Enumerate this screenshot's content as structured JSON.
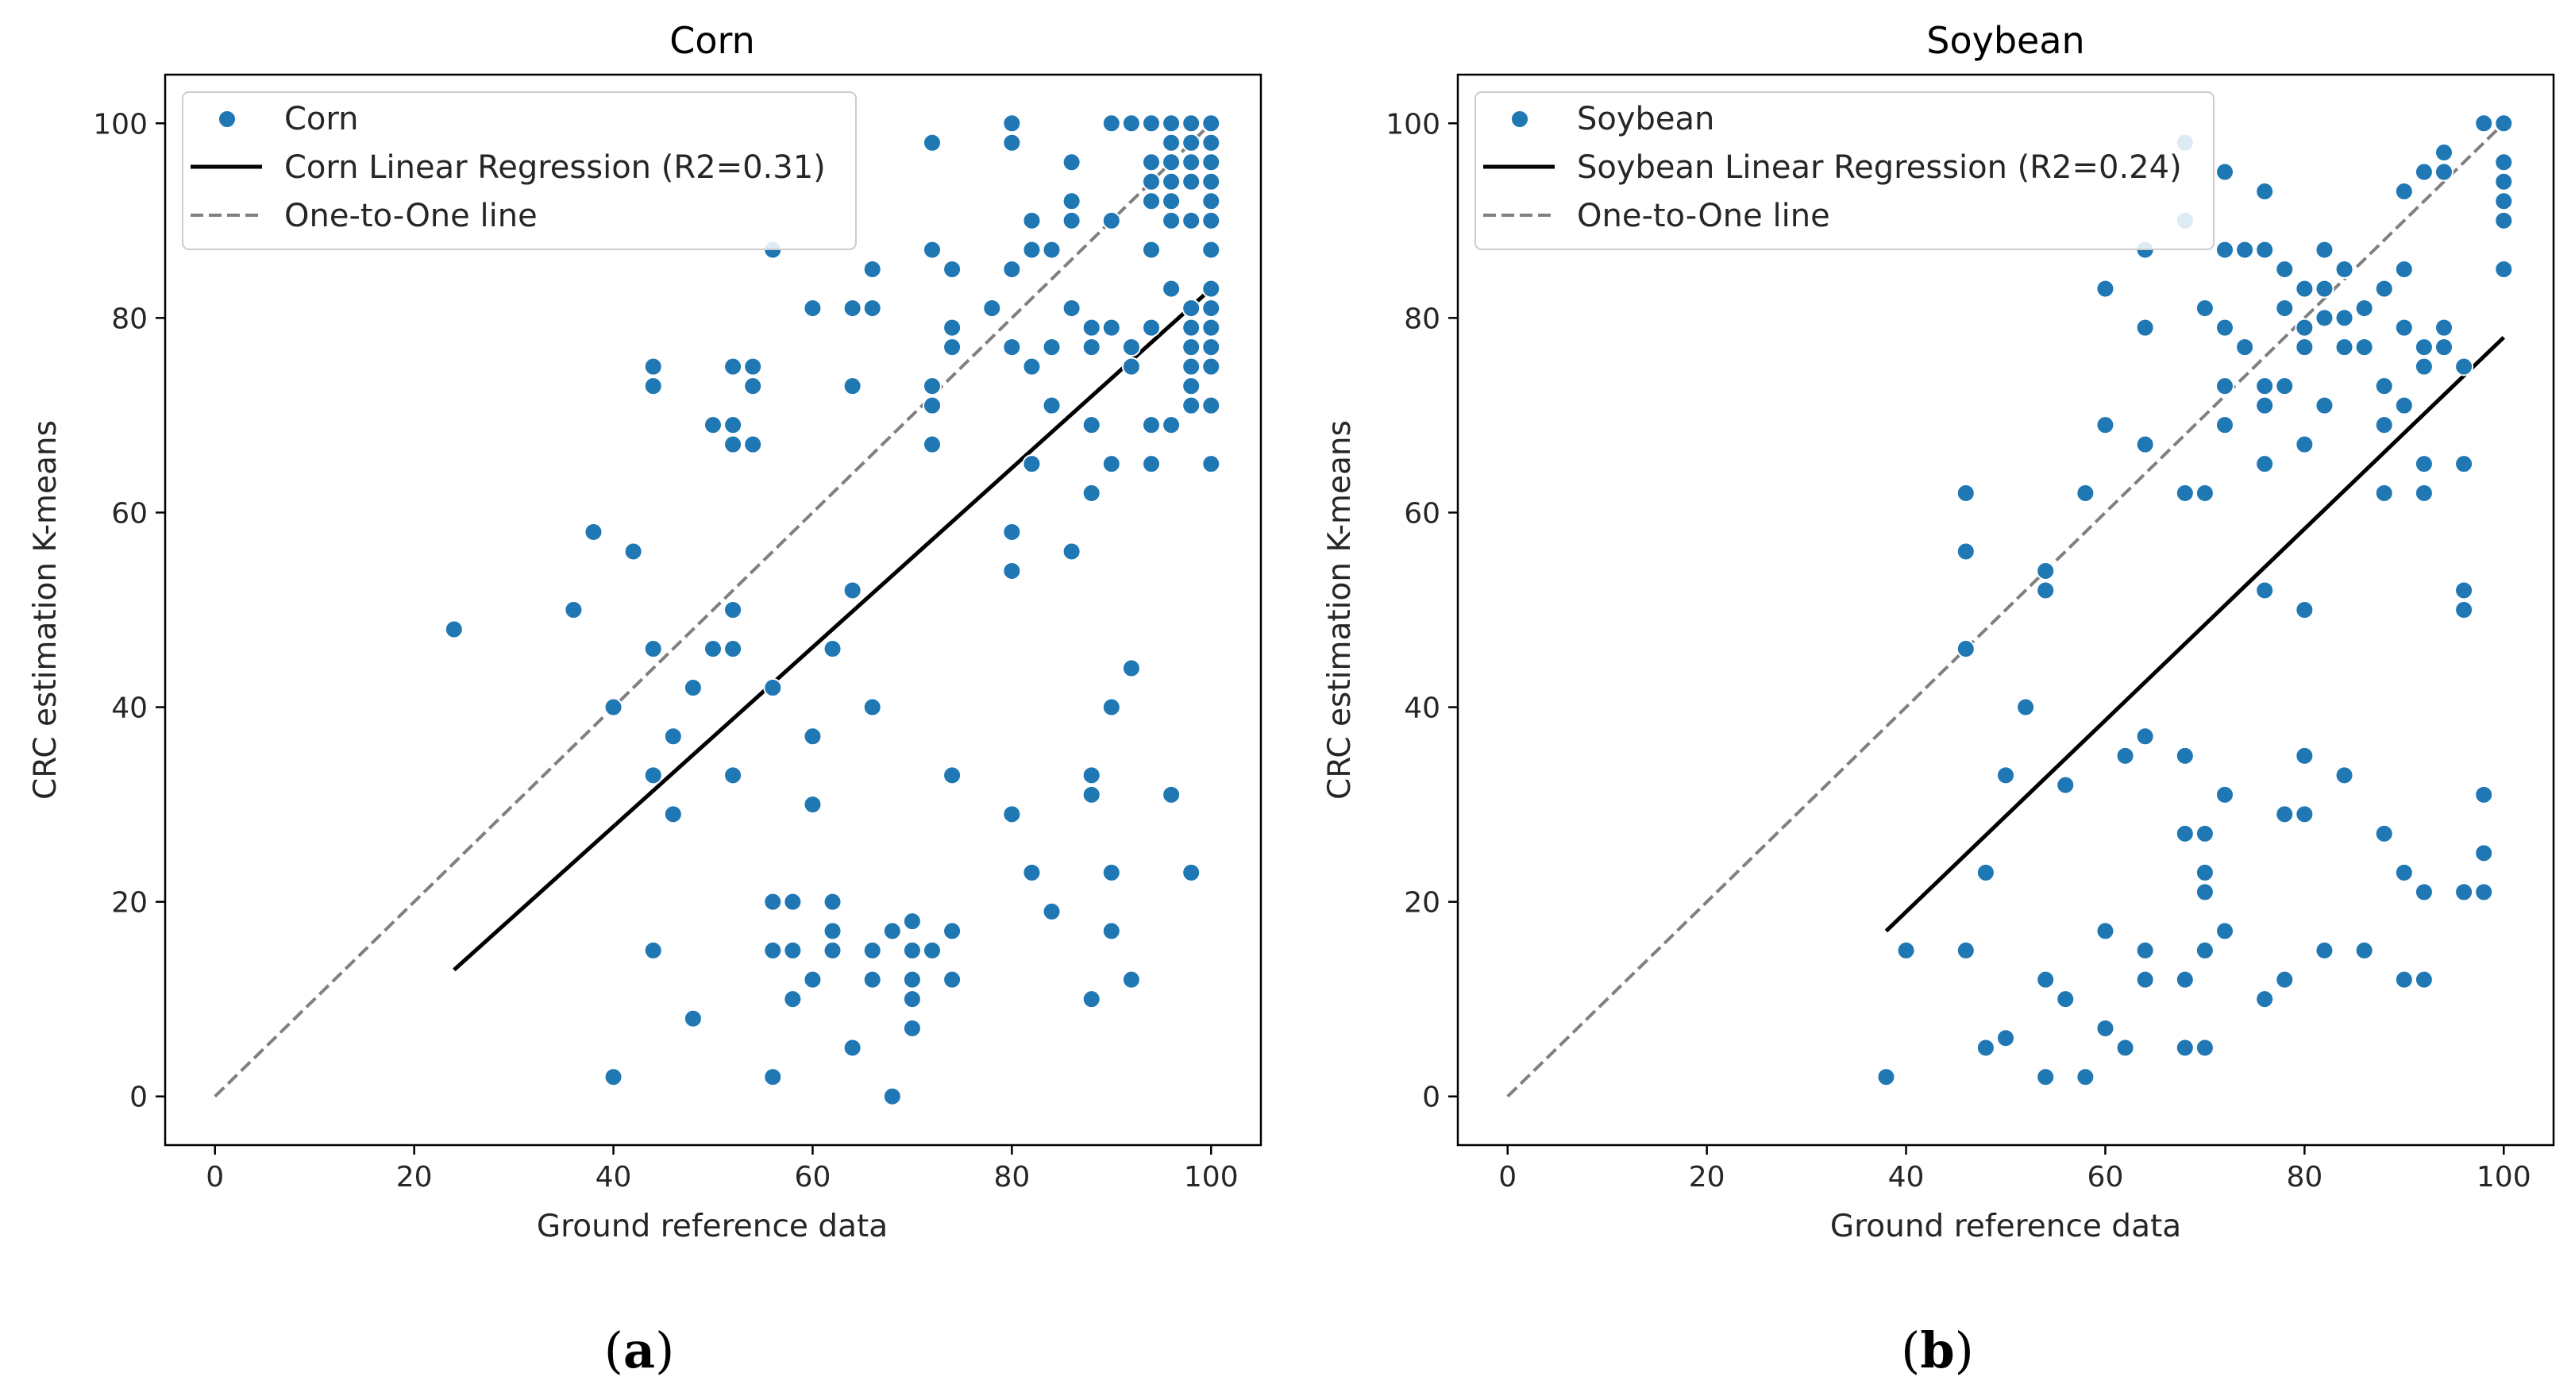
{
  "chart_data": [
    {
      "type": "scatter",
      "title": "Corn",
      "xlabel": "Ground reference data",
      "ylabel": "CRC estimation K-means",
      "xlim": [
        -5,
        105
      ],
      "ylim": [
        -5,
        105
      ],
      "xticks": [
        "0",
        "20",
        "40",
        "60",
        "80",
        "100"
      ],
      "yticks": [
        "0",
        "20",
        "40",
        "60",
        "80",
        "100"
      ],
      "sublabel_letter": "a",
      "legend": {
        "position": "upper-left",
        "entries": [
          "Corn",
          "Corn Linear Regression (R2=0.31)",
          "One-to-One line"
        ]
      },
      "regression": {
        "x1": 24,
        "y1": 13,
        "x2": 100,
        "y2": 83
      },
      "one_to_one": {
        "x1": 0,
        "y1": 0,
        "x2": 100,
        "y2": 100
      },
      "colors": {
        "points": "#1f77b4",
        "regression": "#000000",
        "one_to_one": "#808080"
      },
      "points": [
        [
          24,
          48
        ],
        [
          36,
          50
        ],
        [
          38,
          58
        ],
        [
          40,
          40
        ],
        [
          40,
          2
        ],
        [
          42,
          56
        ],
        [
          44,
          75
        ],
        [
          44,
          73
        ],
        [
          44,
          46
        ],
        [
          44,
          33
        ],
        [
          44,
          15
        ],
        [
          46,
          37
        ],
        [
          46,
          29
        ],
        [
          48,
          42
        ],
        [
          48,
          8
        ],
        [
          50,
          69
        ],
        [
          50,
          46
        ],
        [
          52,
          75
        ],
        [
          52,
          69
        ],
        [
          52,
          67
        ],
        [
          52,
          50
        ],
        [
          52,
          46
        ],
        [
          52,
          33
        ],
        [
          54,
          75
        ],
        [
          54,
          73
        ],
        [
          54,
          67
        ],
        [
          56,
          87
        ],
        [
          56,
          42
        ],
        [
          56,
          20
        ],
        [
          56,
          15
        ],
        [
          56,
          2
        ],
        [
          58,
          20
        ],
        [
          58,
          15
        ],
        [
          58,
          10
        ],
        [
          60,
          81
        ],
        [
          60,
          37
        ],
        [
          60,
          30
        ],
        [
          60,
          12
        ],
        [
          62,
          46
        ],
        [
          62,
          20
        ],
        [
          62,
          17
        ],
        [
          62,
          15
        ],
        [
          64,
          81
        ],
        [
          64,
          73
        ],
        [
          64,
          52
        ],
        [
          64,
          5
        ],
        [
          66,
          85
        ],
        [
          66,
          81
        ],
        [
          66,
          40
        ],
        [
          66,
          15
        ],
        [
          66,
          12
        ],
        [
          68,
          17
        ],
        [
          68,
          0
        ],
        [
          70,
          18
        ],
        [
          70,
          15
        ],
        [
          70,
          12
        ],
        [
          70,
          10
        ],
        [
          70,
          7
        ],
        [
          72,
          98
        ],
        [
          72,
          87
        ],
        [
          72,
          73
        ],
        [
          72,
          71
        ],
        [
          72,
          67
        ],
        [
          72,
          15
        ],
        [
          74,
          85
        ],
        [
          74,
          79
        ],
        [
          74,
          77
        ],
        [
          74,
          33
        ],
        [
          74,
          17
        ],
        [
          74,
          12
        ],
        [
          78,
          81
        ],
        [
          80,
          100
        ],
        [
          80,
          98
        ],
        [
          80,
          85
        ],
        [
          80,
          77
        ],
        [
          80,
          58
        ],
        [
          80,
          54
        ],
        [
          80,
          29
        ],
        [
          82,
          90
        ],
        [
          82,
          87
        ],
        [
          82,
          75
        ],
        [
          82,
          65
        ],
        [
          82,
          23
        ],
        [
          84,
          87
        ],
        [
          84,
          77
        ],
        [
          84,
          71
        ],
        [
          84,
          19
        ],
        [
          86,
          96
        ],
        [
          86,
          92
        ],
        [
          86,
          90
        ],
        [
          86,
          81
        ],
        [
          86,
          56
        ],
        [
          88,
          79
        ],
        [
          88,
          77
        ],
        [
          88,
          69
        ],
        [
          88,
          62
        ],
        [
          88,
          33
        ],
        [
          88,
          31
        ],
        [
          88,
          10
        ],
        [
          90,
          100
        ],
        [
          90,
          90
        ],
        [
          90,
          79
        ],
        [
          90,
          65
        ],
        [
          90,
          40
        ],
        [
          90,
          23
        ],
        [
          90,
          17
        ],
        [
          92,
          100
        ],
        [
          92,
          77
        ],
        [
          92,
          75
        ],
        [
          92,
          44
        ],
        [
          92,
          12
        ],
        [
          94,
          100
        ],
        [
          94,
          96
        ],
        [
          94,
          94
        ],
        [
          94,
          92
        ],
        [
          94,
          87
        ],
        [
          94,
          79
        ],
        [
          94,
          65
        ],
        [
          94,
          69
        ],
        [
          96,
          100
        ],
        [
          96,
          98
        ],
        [
          96,
          96
        ],
        [
          96,
          94
        ],
        [
          96,
          92
        ],
        [
          96,
          90
        ],
        [
          96,
          83
        ],
        [
          96,
          69
        ],
        [
          96,
          31
        ],
        [
          98,
          100
        ],
        [
          98,
          98
        ],
        [
          98,
          96
        ],
        [
          98,
          94
        ],
        [
          98,
          90
        ],
        [
          98,
          81
        ],
        [
          98,
          79
        ],
        [
          98,
          77
        ],
        [
          98,
          75
        ],
        [
          98,
          73
        ],
        [
          98,
          71
        ],
        [
          98,
          23
        ],
        [
          100,
          100
        ],
        [
          100,
          98
        ],
        [
          100,
          96
        ],
        [
          100,
          94
        ],
        [
          100,
          92
        ],
        [
          100,
          90
        ],
        [
          100,
          87
        ],
        [
          100,
          83
        ],
        [
          100,
          81
        ],
        [
          100,
          79
        ],
        [
          100,
          77
        ],
        [
          100,
          75
        ],
        [
          100,
          71
        ],
        [
          100,
          65
        ]
      ]
    },
    {
      "type": "scatter",
      "title": "Soybean",
      "xlabel": "Ground reference data",
      "ylabel": "CRC estimation K-means",
      "xlim": [
        -5,
        105
      ],
      "ylim": [
        -5,
        105
      ],
      "xticks": [
        "0",
        "20",
        "40",
        "60",
        "80",
        "100"
      ],
      "yticks": [
        "0",
        "20",
        "40",
        "60",
        "80",
        "100"
      ],
      "sublabel_letter": "b",
      "legend": {
        "position": "upper-left",
        "entries": [
          "Soybean",
          "Soybean Linear Regression (R2=0.24)",
          "One-to-One line"
        ]
      },
      "regression": {
        "x1": 38,
        "y1": 17,
        "x2": 100,
        "y2": 78
      },
      "one_to_one": {
        "x1": 0,
        "y1": 0,
        "x2": 100,
        "y2": 100
      },
      "colors": {
        "points": "#1f77b4",
        "regression": "#000000",
        "one_to_one": "#808080"
      },
      "points": [
        [
          38,
          2
        ],
        [
          40,
          15
        ],
        [
          46,
          62
        ],
        [
          46,
          56
        ],
        [
          46,
          46
        ],
        [
          46,
          15
        ],
        [
          48,
          23
        ],
        [
          48,
          5
        ],
        [
          50,
          33
        ],
        [
          50,
          6
        ],
        [
          52,
          40
        ],
        [
          54,
          54
        ],
        [
          54,
          52
        ],
        [
          54,
          12
        ],
        [
          54,
          2
        ],
        [
          56,
          32
        ],
        [
          56,
          10
        ],
        [
          58,
          62
        ],
        [
          58,
          2
        ],
        [
          60,
          83
        ],
        [
          60,
          69
        ],
        [
          60,
          17
        ],
        [
          60,
          7
        ],
        [
          62,
          35
        ],
        [
          62,
          5
        ],
        [
          64,
          87
        ],
        [
          64,
          79
        ],
        [
          64,
          67
        ],
        [
          64,
          37
        ],
        [
          64,
          15
        ],
        [
          64,
          12
        ],
        [
          68,
          98
        ],
        [
          68,
          90
        ],
        [
          68,
          62
        ],
        [
          68,
          35
        ],
        [
          68,
          27
        ],
        [
          68,
          12
        ],
        [
          68,
          5
        ],
        [
          70,
          81
        ],
        [
          70,
          62
        ],
        [
          70,
          27
        ],
        [
          70,
          23
        ],
        [
          70,
          21
        ],
        [
          70,
          15
        ],
        [
          70,
          5
        ],
        [
          72,
          95
        ],
        [
          72,
          87
        ],
        [
          72,
          79
        ],
        [
          72,
          73
        ],
        [
          72,
          69
        ],
        [
          72,
          31
        ],
        [
          72,
          17
        ],
        [
          74,
          87
        ],
        [
          74,
          77
        ],
        [
          76,
          93
        ],
        [
          76,
          87
        ],
        [
          76,
          73
        ],
        [
          76,
          71
        ],
        [
          76,
          65
        ],
        [
          76,
          52
        ],
        [
          76,
          10
        ],
        [
          78,
          85
        ],
        [
          78,
          81
        ],
        [
          78,
          73
        ],
        [
          78,
          29
        ],
        [
          78,
          12
        ],
        [
          80,
          83
        ],
        [
          80,
          79
        ],
        [
          80,
          77
        ],
        [
          80,
          67
        ],
        [
          80,
          50
        ],
        [
          80,
          35
        ],
        [
          80,
          29
        ],
        [
          82,
          87
        ],
        [
          82,
          83
        ],
        [
          82,
          80
        ],
        [
          82,
          71
        ],
        [
          82,
          15
        ],
        [
          84,
          85
        ],
        [
          84,
          80
        ],
        [
          84,
          77
        ],
        [
          84,
          33
        ],
        [
          86,
          81
        ],
        [
          86,
          77
        ],
        [
          86,
          15
        ],
        [
          88,
          83
        ],
        [
          88,
          73
        ],
        [
          88,
          69
        ],
        [
          88,
          62
        ],
        [
          88,
          27
        ],
        [
          90,
          93
        ],
        [
          90,
          85
        ],
        [
          90,
          79
        ],
        [
          90,
          71
        ],
        [
          90,
          23
        ],
        [
          90,
          12
        ],
        [
          92,
          95
        ],
        [
          92,
          77
        ],
        [
          92,
          75
        ],
        [
          92,
          65
        ],
        [
          92,
          62
        ],
        [
          92,
          21
        ],
        [
          92,
          12
        ],
        [
          94,
          97
        ],
        [
          94,
          95
        ],
        [
          94,
          79
        ],
        [
          94,
          77
        ],
        [
          96,
          75
        ],
        [
          96,
          65
        ],
        [
          96,
          52
        ],
        [
          96,
          50
        ],
        [
          96,
          21
        ],
        [
          98,
          100
        ],
        [
          98,
          31
        ],
        [
          98,
          25
        ],
        [
          98,
          21
        ],
        [
          100,
          100
        ],
        [
          100,
          96
        ],
        [
          100,
          94
        ],
        [
          100,
          92
        ],
        [
          100,
          90
        ],
        [
          100,
          85
        ]
      ]
    }
  ]
}
